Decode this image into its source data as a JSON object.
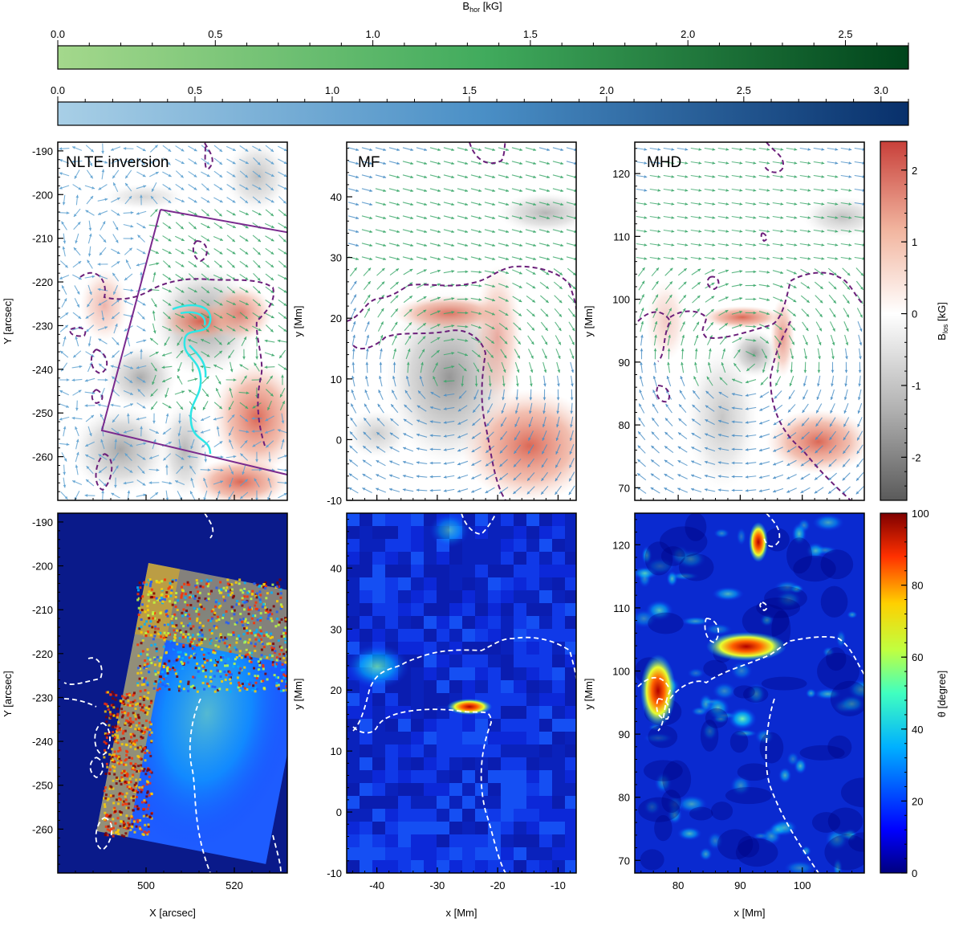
{
  "figure": {
    "colors": {
      "green_start": "#a4d88c",
      "green_end": "#00441b",
      "blue_start": "#a8cfe6",
      "blue_end": "#08306b",
      "dashed_purple": "#6b1f7a",
      "dashed_white": "#ffffff",
      "cyan": "#2ee6e6",
      "box": "#7a2a8e",
      "theta_bg": "#0a1a8a"
    }
  },
  "chart_data": [
    {
      "type": "heatmap",
      "id": "colorbar-bhor",
      "title": "B",
      "title_sub": "hor",
      "title_unit": "[kG]",
      "top_ticks": [
        "0.0",
        "0.5",
        "1.0",
        "1.5",
        "2.0",
        "2.5"
      ],
      "top_range": [
        0,
        2.7
      ],
      "bottom_ticks": [
        "0.0",
        "0.5",
        "1.0",
        "1.5",
        "2.0",
        "2.5",
        "3.0"
      ],
      "bottom_range": [
        0,
        3.1
      ]
    },
    {
      "type": "heatmap",
      "id": "row1-blos",
      "panels": [
        {
          "label": "NLTE inversion",
          "ylabel": "Y [arcsec]",
          "yticks": [
            "-190",
            "-200",
            "-210",
            "-220",
            "-230",
            "-240",
            "-250",
            "-260"
          ],
          "yrange": [
            -270,
            -188
          ]
        },
        {
          "label": "MF",
          "ylabel": "y [Mm]",
          "yticks": [
            "40",
            "30",
            "20",
            "10",
            "0",
            "-10"
          ],
          "yrange": [
            -10,
            49
          ]
        },
        {
          "label": "MHD",
          "ylabel": "y [Mm]",
          "yticks": [
            "120",
            "110",
            "100",
            "90",
            "80",
            "70"
          ],
          "yrange": [
            68,
            125
          ]
        }
      ],
      "colorbar": {
        "label": "B",
        "label_sub": "los",
        "label_unit": "[kG]",
        "ticks": [
          "2",
          "1",
          "0",
          "-1",
          "-2"
        ],
        "range": [
          -2.6,
          2.4
        ]
      }
    },
    {
      "type": "heatmap",
      "id": "row2-theta",
      "panels": [
        {
          "xlabel": "X [arcsec]",
          "ylabel": "Y [arcsec]",
          "xticks": [
            "500",
            "520"
          ],
          "xrange": [
            480,
            532
          ],
          "yticks": [
            "-190",
            "-200",
            "-210",
            "-220",
            "-230",
            "-240",
            "-250",
            "-260"
          ],
          "yrange": [
            -270,
            -188
          ]
        },
        {
          "xlabel": "x [Mm]",
          "ylabel": "y [Mm]",
          "xticks": [
            "-40",
            "-30",
            "-20",
            "-10"
          ],
          "xrange": [
            -45,
            -7
          ],
          "yticks": [
            "40",
            "30",
            "20",
            "10",
            "0",
            "-10"
          ],
          "yrange": [
            -10,
            49
          ]
        },
        {
          "xlabel": "x [Mm]",
          "ylabel": "y [Mm]",
          "xticks": [
            "80",
            "90",
            "100"
          ],
          "xrange": [
            73,
            110
          ],
          "yticks": [
            "120",
            "110",
            "100",
            "90",
            "80",
            "70"
          ],
          "yrange": [
            68,
            125
          ]
        }
      ],
      "colorbar": {
        "label": "θ [degree]",
        "ticks": [
          "100",
          "80",
          "60",
          "40",
          "20",
          "0"
        ],
        "range": [
          0,
          100
        ]
      }
    }
  ]
}
